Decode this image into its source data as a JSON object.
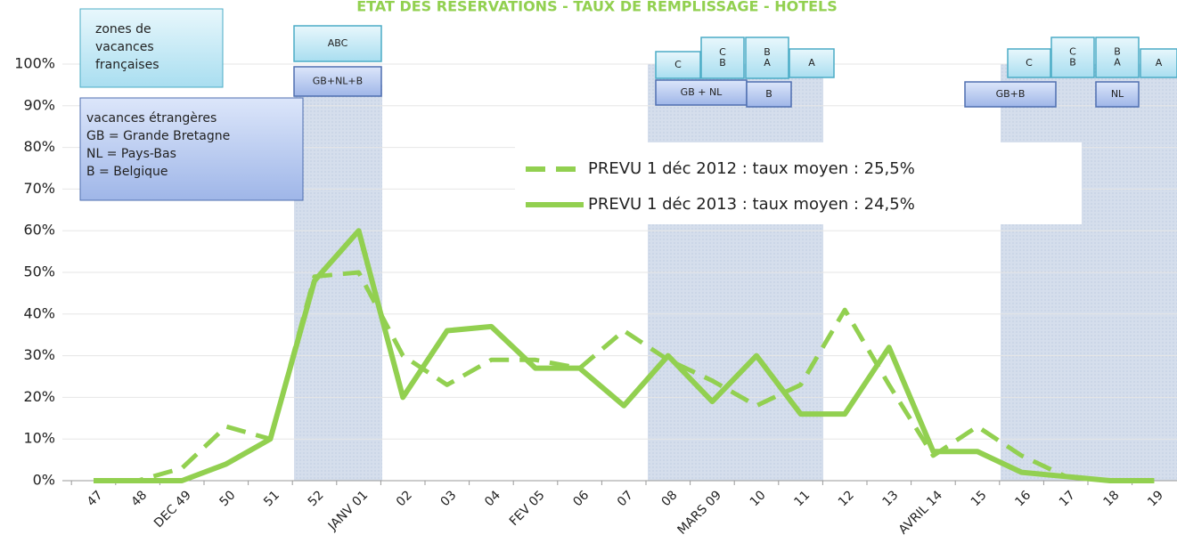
{
  "chart_data": {
    "type": "line",
    "title": "ETAT DES RESERVATIONS - TAUX DE REMPLISSAGE  - HOTELS",
    "categories": [
      "47",
      "48",
      "DEC 49",
      "50",
      "51",
      "52",
      "JANV 01",
      "02",
      "03",
      "04",
      "FEV 05",
      "06",
      "07",
      "08",
      "MARS 09",
      "10",
      "11",
      "12",
      "13",
      "AVRIL 14",
      "15",
      "16",
      "17",
      "18",
      "19"
    ],
    "series": [
      {
        "name": "PREVU 1 déc 2012 : taux moyen : 25,5%",
        "color": "#92d050",
        "dash": true,
        "values": [
          0,
          0,
          3,
          13,
          10,
          49,
          50,
          30,
          23,
          29,
          29,
          27,
          36,
          29,
          24,
          18,
          23,
          41,
          23,
          6,
          13,
          6,
          1,
          0,
          0
        ]
      },
      {
        "name": "PREVU 1 déc 2013 : taux moyen : 24,5%",
        "color": "#92d050",
        "dash": false,
        "values": [
          0,
          0,
          0,
          4,
          10,
          48,
          60,
          20,
          36,
          37,
          27,
          27,
          18,
          30,
          19,
          30,
          16,
          16,
          32,
          7,
          7,
          2,
          1,
          0,
          0
        ]
      }
    ],
    "ylim": [
      0,
      100
    ],
    "yticks": [
      {
        "value": 0,
        "label": "0%"
      },
      {
        "value": 10,
        "label": "10%"
      },
      {
        "value": 20,
        "label": "20%"
      },
      {
        "value": 30,
        "label": "30%"
      },
      {
        "value": 40,
        "label": "40%"
      },
      {
        "value": 50,
        "label": "50%"
      },
      {
        "value": 60,
        "label": "60%"
      },
      {
        "value": 70,
        "label": "70%"
      },
      {
        "value": 80,
        "label": "80%"
      },
      {
        "value": 90,
        "label": "90%"
      },
      {
        "value": 100,
        "label": "100%"
      }
    ],
    "grid": true,
    "annotations": {
      "french_zones": [
        "zones de",
        "vacances",
        "françaises"
      ],
      "foreign": [
        "vacances étrangères",
        "GB = Grande Bretagne",
        "NL = Pays-Bas",
        "B = Belgique"
      ]
    },
    "holiday_boxes": [
      {
        "lines": [
          "ABC"
        ]
      },
      {
        "lines": [
          "GB+NL+B"
        ]
      },
      {
        "lines": [
          "C"
        ]
      },
      {
        "lines": [
          "C",
          "B"
        ]
      },
      {
        "lines": [
          "B",
          "A"
        ]
      },
      {
        "lines": [
          "A"
        ]
      },
      {
        "lines": [
          "GB + NL"
        ]
      },
      {
        "lines": [
          "B"
        ]
      },
      {
        "lines": [
          "C"
        ]
      },
      {
        "lines": [
          "C",
          "B"
        ]
      },
      {
        "lines": [
          "B",
          "A"
        ]
      },
      {
        "lines": [
          "A"
        ]
      },
      {
        "lines": [
          "GB+B"
        ]
      },
      {
        "lines": [
          "NL"
        ]
      }
    ]
  }
}
